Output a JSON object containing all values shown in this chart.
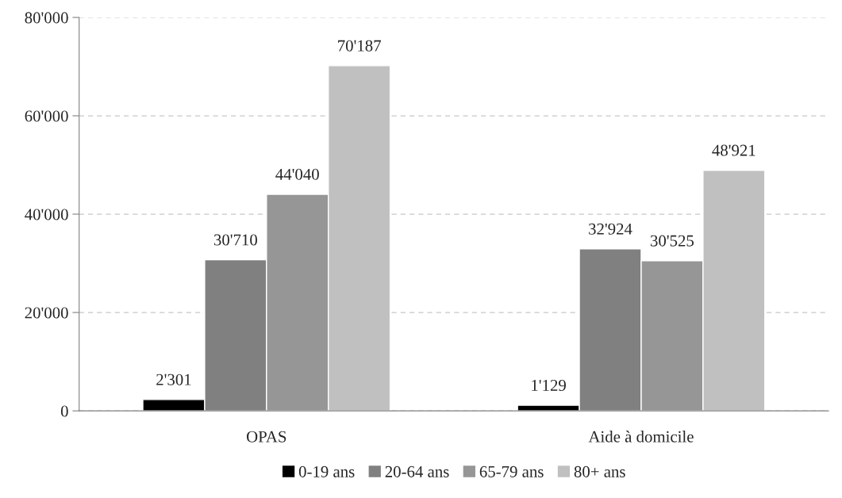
{
  "chart_data": {
    "type": "bar",
    "categories": [
      "OPAS",
      "Aide à domicile"
    ],
    "series": [
      {
        "name": "0-19 ans",
        "color": "#000000",
        "values": [
          2301,
          1129
        ],
        "value_labels": [
          "2'301",
          "1'129"
        ]
      },
      {
        "name": "20-64 ans",
        "color": "#808080",
        "values": [
          30710,
          32924
        ],
        "value_labels": [
          "30'710",
          "32'924"
        ]
      },
      {
        "name": "65-79 ans",
        "color": "#969696",
        "values": [
          44040,
          30525
        ],
        "value_labels": [
          "44'040",
          "30'525"
        ]
      },
      {
        "name": "80+ ans",
        "color": "#c0c0c0",
        "values": [
          70187,
          48921
        ],
        "value_labels": [
          "70'187",
          "48'921"
        ]
      }
    ],
    "ylim": [
      0,
      80000
    ],
    "yticks": [
      0,
      {
        "value": 20000,
        "label": "20'000"
      },
      {
        "value": 40000,
        "label": "40'000"
      },
      {
        "value": 60000,
        "label": "60'000"
      },
      {
        "value": 80000,
        "label": "80'000"
      }
    ],
    "grid": "y",
    "legend": "bottom"
  }
}
